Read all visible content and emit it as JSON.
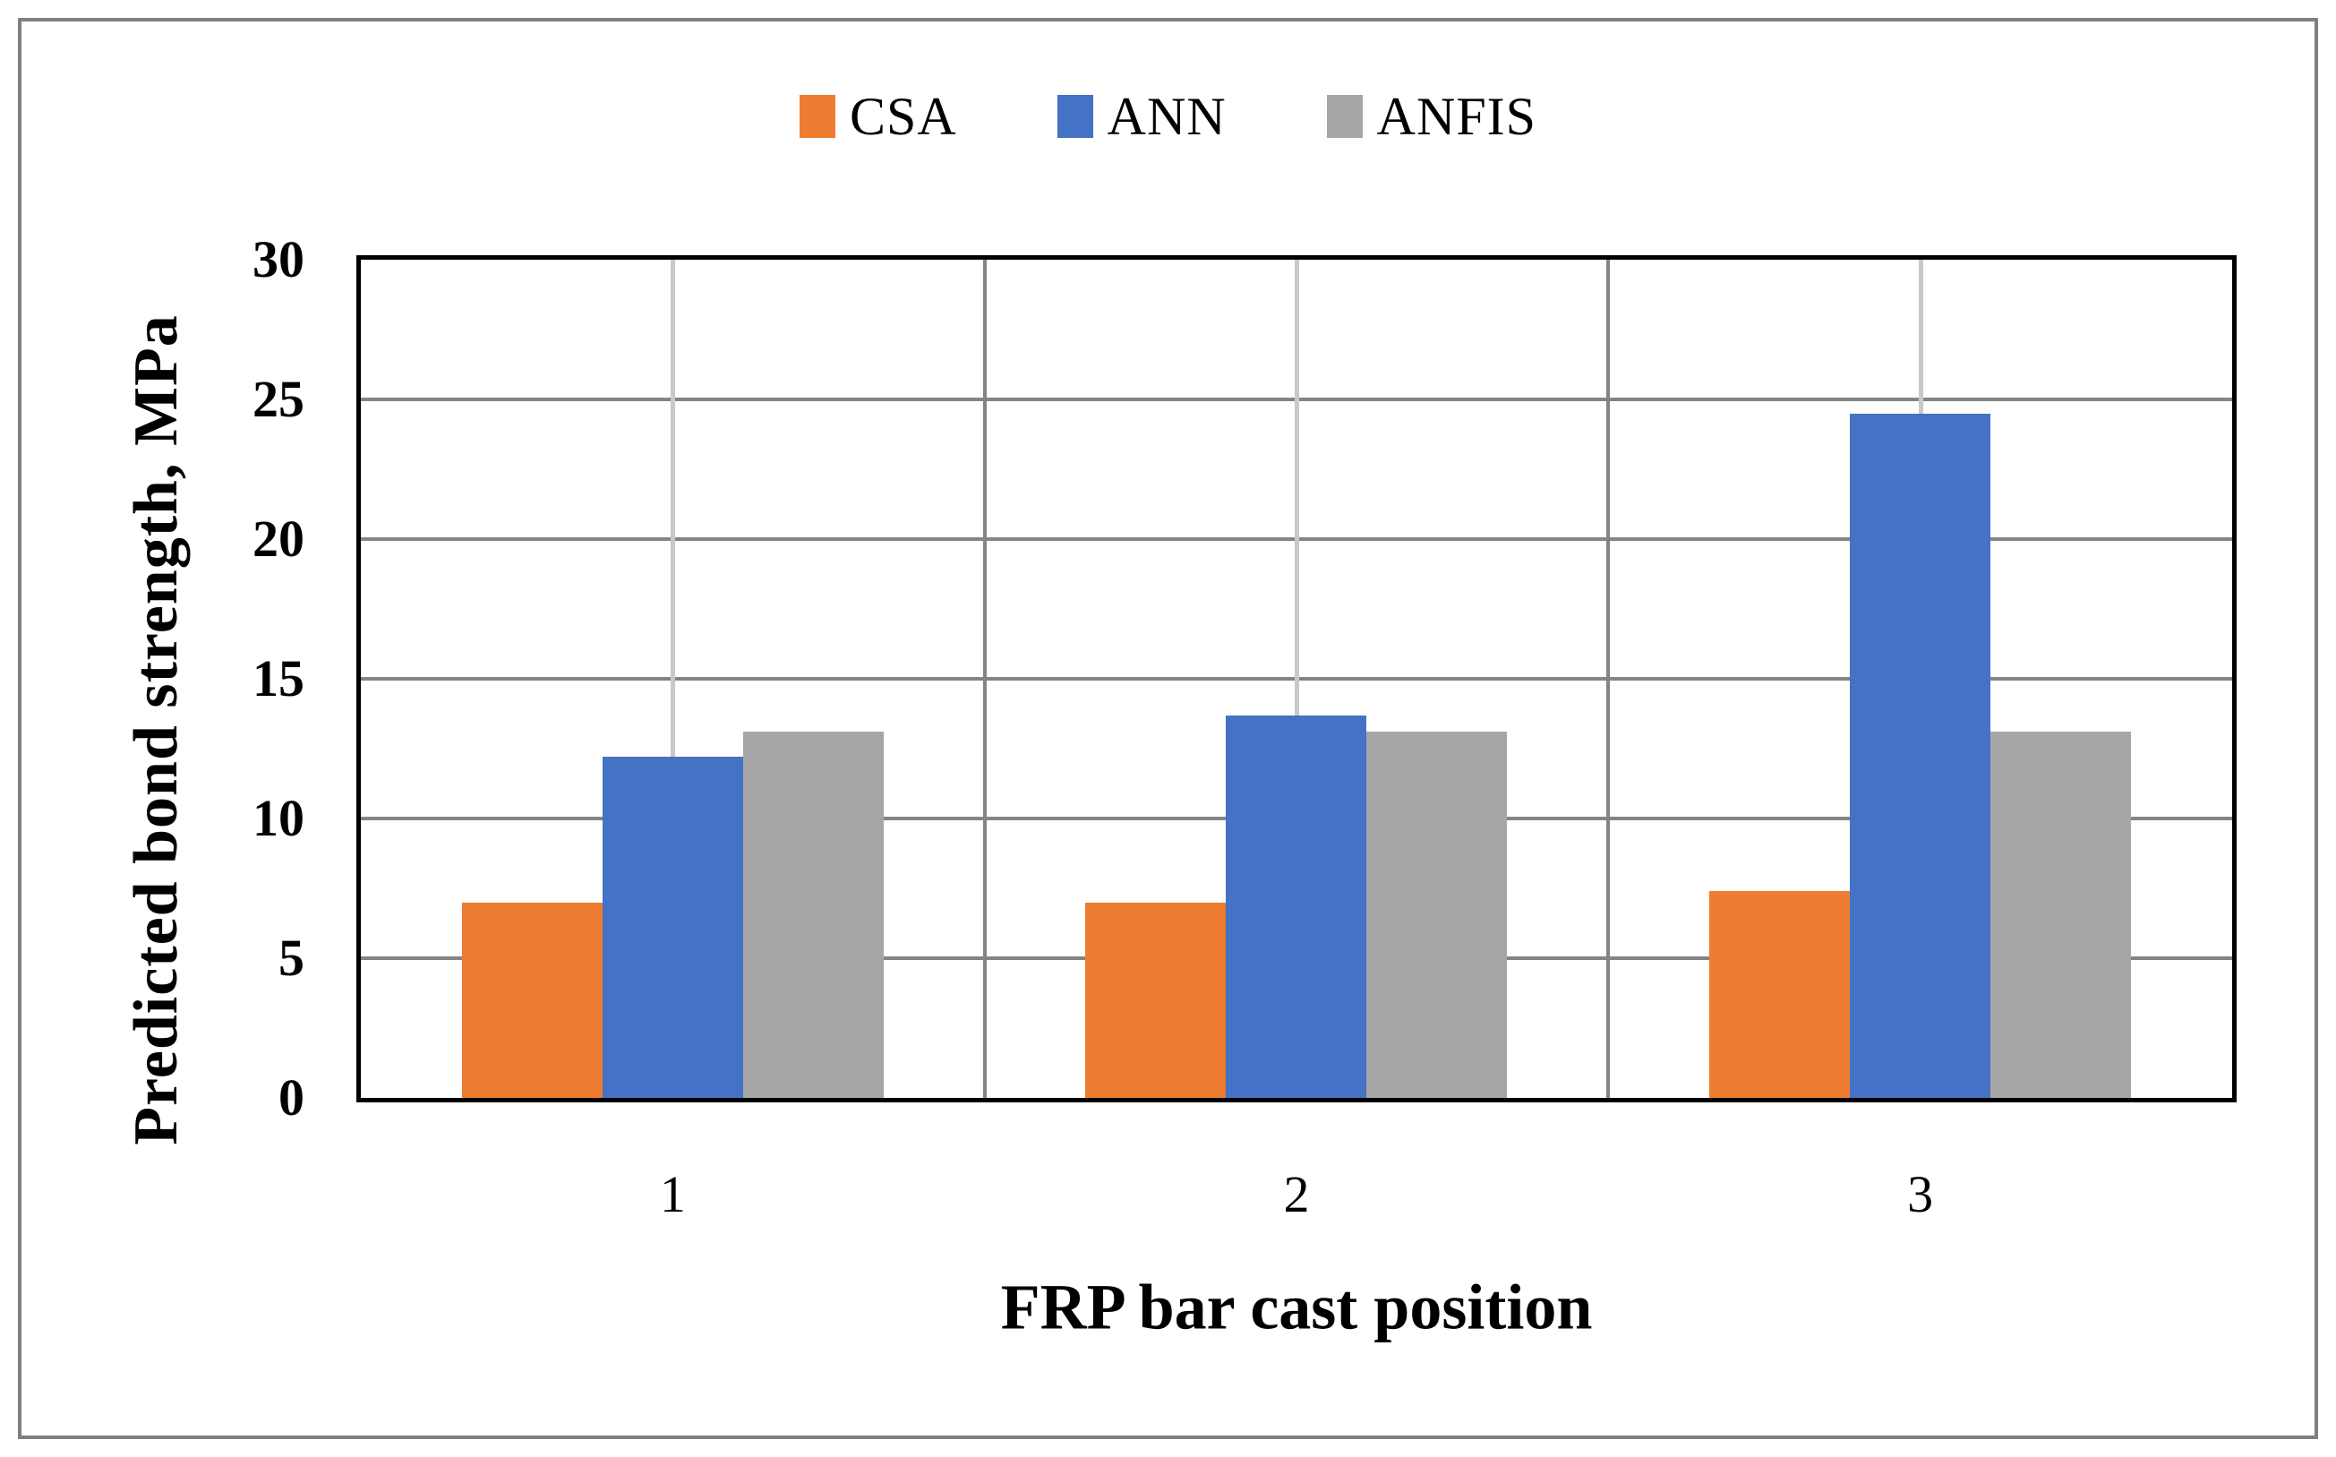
{
  "figure": {
    "background_color": "#ffffff",
    "frame_color": "#7f7f7f"
  },
  "chart_data": {
    "type": "bar",
    "title": "",
    "categories": [
      "1",
      "2",
      "3"
    ],
    "series": [
      {
        "name": "CSA",
        "color": "#ED7C31",
        "values": [
          7.0,
          7.0,
          7.4
        ]
      },
      {
        "name": "ANN",
        "color": "#4472C4",
        "values": [
          12.2,
          13.7,
          24.5
        ]
      },
      {
        "name": "ANFIS",
        "color": "#A6A6A6",
        "values": [
          13.1,
          13.1,
          13.1
        ]
      }
    ],
    "xlabel": "FRP bar cast position",
    "ylabel": "Predicted bond strength, MPa",
    "ylim": [
      0,
      30
    ],
    "ytick_step": 5,
    "yticks": [
      0,
      5,
      10,
      15,
      20,
      25,
      30
    ],
    "legend_position": "top-center",
    "grid": {
      "horizontal": true,
      "vertical_major_between_categories": true,
      "vertical_minor_at_category_centers": true,
      "major_color": "#848484",
      "minor_color": "#c9c9c9"
    },
    "axis_color": "#000000",
    "text_color": "#000000"
  }
}
